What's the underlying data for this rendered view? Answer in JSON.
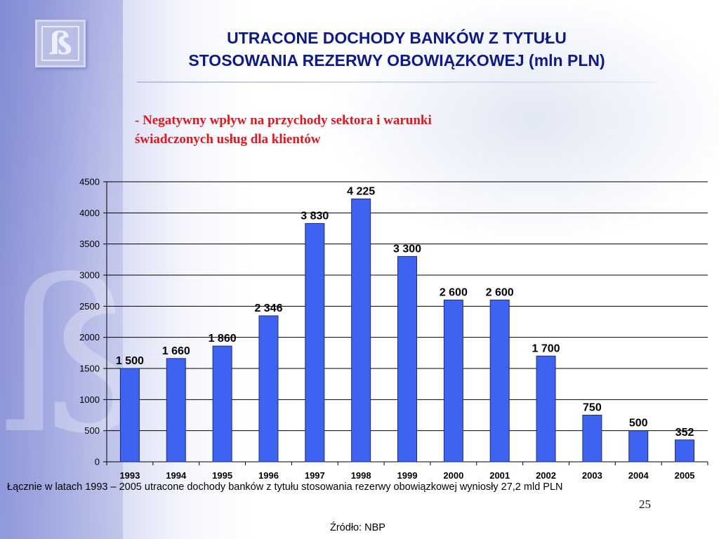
{
  "slide": {
    "title_line1": "UTRACONE DOCHODY BANKÓW Z TYTUŁU",
    "title_line2": "STOSOWANIA REZERWY OBOWIĄZKOWEJ (mln PLN)",
    "subtitle_line1": "- Negatywny wpływ na przychody sektora i warunki",
    "subtitle_line2": "świadczonych usług dla klientów",
    "footnote": "Łącznie w latach 1993 – 2005 utracone dochody banków z tytułu stosowania rezerwy obowiązkowej wyniosły 27,2 mld PLN",
    "page_number": "25",
    "source": "Źródło: NBP",
    "logo_glyph": "ß"
  },
  "colors": {
    "title": "#0d1a8f",
    "subtitle": "#e8141c",
    "bar_fill": "#3d63f0",
    "bar_stroke": "#1a2a8a"
  },
  "chart_data": {
    "type": "bar",
    "categories": [
      "1993",
      "1994",
      "1995",
      "1996",
      "1997",
      "1998",
      "1999",
      "2000",
      "2001",
      "2002",
      "2003",
      "2004",
      "2005"
    ],
    "values": [
      1500,
      1660,
      1860,
      2346,
      3830,
      4225,
      3300,
      2600,
      2600,
      1700,
      750,
      500,
      352
    ],
    "data_labels": [
      "1 500",
      "1 660",
      "1 860",
      "2 346",
      "3 830",
      "4 225",
      "3 300",
      "2 600",
      "2 600",
      "1 700",
      "750",
      "500",
      "352"
    ],
    "yticks": [
      0,
      500,
      1000,
      1500,
      2000,
      2500,
      3000,
      3500,
      4000,
      4500
    ],
    "ylim": [
      0,
      4500
    ],
    "grid": true,
    "legend": "none"
  }
}
